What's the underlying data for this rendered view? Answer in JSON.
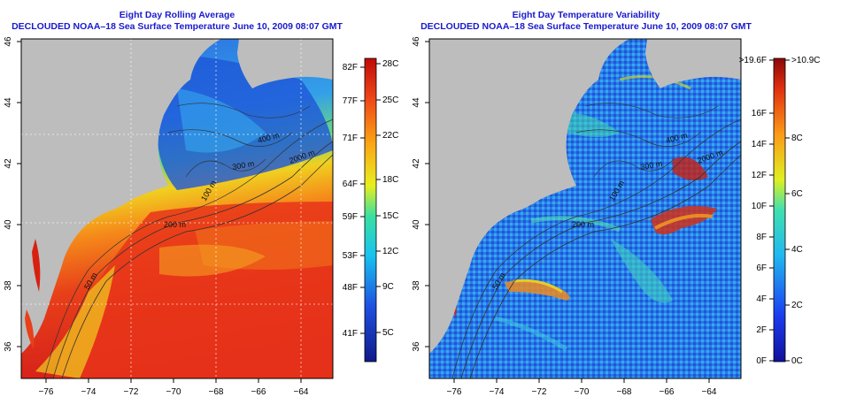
{
  "left_panel": {
    "title": "Eight Day Rolling Average",
    "subtitle": "DECLOUDED NOAA–18 Sea Surface Temperature June 10, 2009 08:07 GMT",
    "lon_ticks": [
      "−76",
      "−74",
      "−72",
      "−70",
      "−68",
      "−66",
      "−64"
    ],
    "lat_ticks": [
      "46",
      "44",
      "42",
      "40",
      "38",
      "36"
    ],
    "contours": [
      "200 m",
      "2000 m",
      "50 m",
      "100 m",
      "300 m",
      "400 m"
    ],
    "colorbar_f": [
      "82F",
      "77F",
      "71F",
      "64F",
      "59F",
      "53F",
      "48F",
      "41F"
    ],
    "colorbar_c": [
      "28C",
      "25C",
      "22C",
      "18C",
      "15C",
      "12C",
      "9C",
      "5C"
    ]
  },
  "right_panel": {
    "title": "Eight Day Temperature Variability",
    "subtitle": "DECLOUDED NOAA–18 Sea Surface Temperature June 10, 2009 08:07 GMT",
    "lon_ticks": [
      "−76",
      "−74",
      "−72",
      "−70",
      "−68",
      "−66",
      "−64"
    ],
    "lat_ticks": [
      "46",
      "44",
      "42",
      "40",
      "38",
      "36"
    ],
    "contours": [
      "200 m",
      "2000 m",
      "50 m",
      "100 m",
      "300 m",
      "400 m"
    ],
    "colorbar_f": [
      ">19.6F",
      "16F",
      "14F",
      "12F",
      "10F",
      "8F",
      "6F",
      "4F",
      "2F",
      "0F"
    ],
    "colorbar_c": [
      ">10.9C",
      "8C",
      "6C",
      "4C",
      "2C",
      "0C"
    ]
  },
  "colors": {
    "title": "#1a1acd",
    "land": "#bdbdbd",
    "warm": "#d81a10",
    "cold": "#1533c8"
  }
}
